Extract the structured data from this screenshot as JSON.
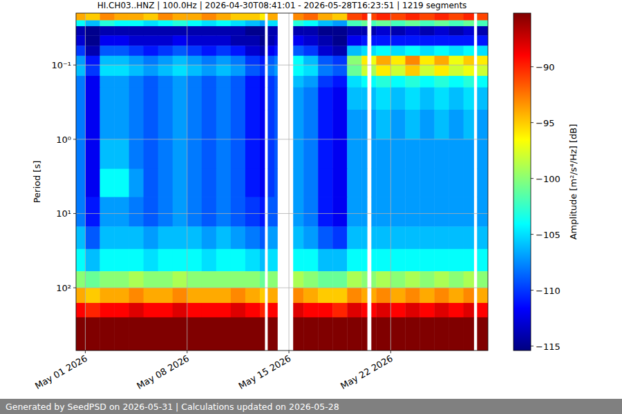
{
  "chart_data": {
    "type": "heatmap",
    "title": "HI.CH03..HNZ | 100.0Hz | 2026-04-30T08:41:01 - 2026-05-28T16:23:51 | 1219 segments",
    "y_label": "Period [s]",
    "footer": "Generated by SeedPSD on 2026-05-31 | Calculations updated on 2026-05-28",
    "log": "y",
    "grid": true,
    "color": "jet",
    "xlim": [
      "2026-04-30T08:41:01",
      "2026-05-28T16:23:51"
    ],
    "xticks": [
      {
        "value": "2026-05-01T00:00:00",
        "label": "May 01 2026"
      },
      {
        "value": "2026-05-08T00:00:00",
        "label": "May 08 2026"
      },
      {
        "value": "2026-05-15T00:00:00",
        "label": "May 15 2026"
      },
      {
        "value": "2026-05-22T00:00:00",
        "label": "May 22 2026"
      }
    ],
    "ylim": [
      700,
      0.02
    ],
    "yticks": [
      {
        "value": 0.1,
        "label": "10⁻¹"
      },
      {
        "value": 1,
        "label": "10⁰"
      },
      {
        "value": 10,
        "label": "10¹"
      },
      {
        "value": 100,
        "label": "10²"
      }
    ],
    "x": [
      "2026-04-30T08:41:01",
      "2026-05-01T00:00:00",
      "2026-05-02T00:00:00",
      "2026-05-03T00:00:00",
      "2026-05-04T00:00:00",
      "2026-05-05T00:00:00",
      "2026-05-06T00:00:00",
      "2026-05-07T00:00:00",
      "2026-05-08T00:00:00",
      "2026-05-09T00:00:00",
      "2026-05-10T00:00:00",
      "2026-05-11T00:00:00",
      "2026-05-12T00:00:00",
      "2026-05-13T00:00:00",
      "2026-05-13T08:00:00",
      "2026-05-13T13:00:00",
      "2026-05-14T00:00:00",
      "2026-05-14T05:00:00",
      "2026-05-15T07:00:00",
      "2026-05-16T00:00:00",
      "2026-05-17T00:00:00",
      "2026-05-18T00:00:00",
      "2026-05-19T00:00:00",
      "2026-05-20T00:00:00",
      "2026-05-20T09:00:00",
      "2026-05-20T16:00:00",
      "2026-05-21T00:00:00",
      "2026-05-22T00:00:00",
      "2026-05-23T00:00:00",
      "2026-05-24T00:00:00",
      "2026-05-25T00:00:00",
      "2026-05-26T00:00:00",
      "2026-05-27T00:00:00",
      "2026-05-27T17:00:00",
      "2026-05-27T22:30:00",
      "2026-05-28T16:23:51"
    ],
    "y": [
      0.02,
      0.025,
      0.03,
      0.04,
      0.055,
      0.075,
      0.1,
      0.14,
      0.2,
      0.4,
      1,
      2.5,
      6,
      15,
      30,
      60,
      100,
      160,
      250,
      700
    ],
    "cells": [
      [
        -94,
        -95,
        -93,
        -94,
        -94,
        -95,
        -93,
        -94,
        -94,
        -93,
        -94,
        -95,
        -95,
        -96,
        null,
        -94,
        -94,
        null,
        -93,
        -92,
        -94,
        -95,
        -91,
        -90,
        null,
        -91,
        -90,
        -91,
        -90,
        -91,
        -90,
        -91,
        -90,
        null,
        -91
      ],
      [
        -104,
        -106,
        -103,
        -104,
        -104,
        -105,
        -104,
        -103,
        -104,
        -105,
        -104,
        -105,
        -106,
        -107,
        null,
        -105,
        -105,
        null,
        -103,
        -104,
        -106,
        -107,
        -102,
        -101,
        null,
        -102,
        -101,
        -102,
        -101,
        -102,
        -101,
        -102,
        -101,
        null,
        -102
      ],
      [
        -114,
        -115,
        -114,
        -114,
        -114,
        -114,
        -114,
        -114,
        -114,
        -114,
        -114,
        -114,
        -115,
        -115,
        null,
        -114,
        -114,
        null,
        -114,
        -114,
        -115,
        -115,
        -114,
        -114,
        null,
        -114,
        -113,
        -114,
        -113,
        -114,
        -113,
        -114,
        -113,
        null,
        -114
      ],
      [
        -113,
        -115,
        -112,
        -112,
        -113,
        -113,
        -113,
        -112,
        -113,
        -113,
        -113,
        -114,
        -114,
        -115,
        null,
        -114,
        -113,
        null,
        -112,
        -113,
        -114,
        -115,
        -112,
        -111,
        null,
        -111,
        -111,
        -111,
        -111,
        -111,
        -111,
        -111,
        -111,
        null,
        -111
      ],
      [
        -110,
        -114,
        -109,
        -109,
        -110,
        -111,
        -110,
        -109,
        -110,
        -111,
        -110,
        -111,
        -113,
        -114,
        null,
        -112,
        -111,
        null,
        -109,
        -110,
        -113,
        -114,
        -106,
        -105,
        null,
        -105,
        -104,
        -105,
        -104,
        -105,
        -104,
        -105,
        -104,
        null,
        -105
      ],
      [
        -107,
        -111,
        -106,
        -106,
        -107,
        -108,
        -107,
        -106,
        -107,
        -108,
        -107,
        -108,
        -110,
        -111,
        null,
        -109,
        -108,
        null,
        -104,
        -106,
        -109,
        -110,
        -100,
        -96,
        null,
        -97,
        -94,
        -96,
        -93,
        -96,
        -94,
        -97,
        -95,
        null,
        -96
      ],
      [
        -106,
        -110,
        -105,
        -105,
        -106,
        -107,
        -106,
        -105,
        -106,
        -107,
        -106,
        -107,
        -109,
        -110,
        null,
        -108,
        -107,
        null,
        -104,
        -105,
        -108,
        -109,
        -101,
        -98,
        null,
        -99,
        -96,
        -98,
        -95,
        -98,
        -96,
        -98,
        -97,
        null,
        -98
      ],
      [
        -108,
        -112,
        -107,
        -107,
        -108,
        -109,
        -108,
        -107,
        -108,
        -109,
        -108,
        -109,
        -111,
        -112,
        null,
        -110,
        -109,
        null,
        -106,
        -107,
        -110,
        -111,
        -105,
        -104,
        null,
        -104,
        -103,
        -104,
        -103,
        -104,
        -103,
        -104,
        -103,
        null,
        -104
      ],
      [
        -108,
        -112,
        -107,
        -107,
        -108,
        -109,
        -108,
        -107,
        -108,
        -109,
        -108,
        -109,
        -111,
        -112,
        null,
        -110,
        -109,
        null,
        -107,
        -108,
        -111,
        -112,
        -106,
        -106,
        null,
        -106,
        -105,
        -106,
        -105,
        -106,
        -105,
        -106,
        -105,
        null,
        -106
      ],
      [
        -108,
        -112,
        -107,
        -107,
        -108,
        -109,
        -108,
        -107,
        -108,
        -109,
        -108,
        -109,
        -111,
        -112,
        null,
        -110,
        -109,
        null,
        -107,
        -108,
        -111,
        -112,
        -107,
        -107,
        null,
        -107,
        -106,
        -107,
        -106,
        -107,
        -106,
        -107,
        -106,
        null,
        -107
      ],
      [
        -108,
        -112,
        -106,
        -106,
        -108,
        -109,
        -108,
        -107,
        -108,
        -109,
        -108,
        -109,
        -111,
        -112,
        null,
        -110,
        -109,
        null,
        -107,
        -108,
        -111,
        -112,
        -107,
        -107,
        null,
        -107,
        -107,
        -107,
        -107,
        -107,
        -107,
        -107,
        -107,
        null,
        -107
      ],
      [
        -108,
        -112,
        -104,
        -104,
        -107,
        -109,
        -108,
        -107,
        -108,
        -109,
        -108,
        -109,
        -111,
        -112,
        null,
        -110,
        -109,
        null,
        -107,
        -108,
        -111,
        -112,
        -107,
        -107,
        null,
        -107,
        -107,
        -107,
        -107,
        -107,
        -107,
        -107,
        -107,
        null,
        -107
      ],
      [
        -108,
        -111,
        -107,
        -107,
        -108,
        -109,
        -108,
        -107,
        -108,
        -109,
        -108,
        -109,
        -110,
        -111,
        null,
        -109,
        -109,
        null,
        -107,
        -108,
        -111,
        -112,
        -107,
        -107,
        null,
        -107,
        -107,
        -107,
        -107,
        -107,
        -107,
        -107,
        -107,
        null,
        -107
      ],
      [
        -106,
        -109,
        -106,
        -106,
        -106,
        -107,
        -106,
        -106,
        -106,
        -107,
        -106,
        -107,
        -108,
        -109,
        null,
        -107,
        -107,
        null,
        -106,
        -107,
        -109,
        -110,
        -106,
        -106,
        null,
        -106,
        -106,
        -106,
        -106,
        -106,
        -106,
        -106,
        -106,
        null,
        -106
      ],
      [
        -104,
        -106,
        -104,
        -104,
        -104,
        -105,
        -104,
        -104,
        -104,
        -105,
        -104,
        -104,
        -105,
        -106,
        null,
        -105,
        -105,
        null,
        -104,
        -104,
        -106,
        -106,
        -104,
        -104,
        null,
        -104,
        -104,
        -104,
        -104,
        -104,
        -104,
        -104,
        -104,
        null,
        -104
      ],
      [
        -100,
        -101,
        -100,
        -100,
        -99,
        -100,
        -100,
        -99,
        -100,
        -100,
        -100,
        -100,
        -100,
        -101,
        null,
        -100,
        -100,
        null,
        -99,
        -100,
        -101,
        -101,
        -99,
        -100,
        null,
        -100,
        -99,
        -100,
        -99,
        -100,
        -99,
        -100,
        -99,
        null,
        -100
      ],
      [
        -94,
        -95,
        -94,
        -94,
        -93,
        -94,
        -94,
        -93,
        -94,
        -94,
        -94,
        -93,
        -94,
        -95,
        null,
        -94,
        -94,
        null,
        -93,
        -94,
        -95,
        -95,
        -93,
        -94,
        null,
        -94,
        -93,
        -94,
        -93,
        -94,
        -93,
        -94,
        -93,
        null,
        -94
      ],
      [
        -89,
        -90,
        -89,
        -89,
        -88,
        -89,
        -89,
        -88,
        -89,
        -89,
        -89,
        -88,
        -89,
        -90,
        null,
        -89,
        -89,
        null,
        -88,
        -89,
        -89,
        -90,
        -88,
        -89,
        null,
        -89,
        -88,
        -89,
        -88,
        -89,
        -88,
        -89,
        -88,
        null,
        -89
      ],
      [
        -85,
        -85,
        -85,
        -85,
        -85,
        -85,
        -85,
        -85,
        -85,
        -85,
        -85,
        -85,
        -85,
        -85,
        null,
        -85,
        -85,
        null,
        -85,
        -85,
        -85,
        -85,
        -85,
        -85,
        null,
        -85,
        -85,
        -85,
        -85,
        -85,
        -85,
        -85,
        -85,
        null,
        -85
      ]
    ],
    "colorbar": {
      "label": "Amplitude [m²/s⁴/Hz] [dB]",
      "lim": [
        -115.4,
        -85.2
      ],
      "ticks": [
        {
          "value": -90,
          "label": "−90"
        },
        {
          "value": -95,
          "label": "−95"
        },
        {
          "value": -100,
          "label": "−100"
        },
        {
          "value": -105,
          "label": "−105"
        },
        {
          "value": -110,
          "label": "−110"
        },
        {
          "value": -115,
          "label": "−115"
        }
      ]
    }
  }
}
